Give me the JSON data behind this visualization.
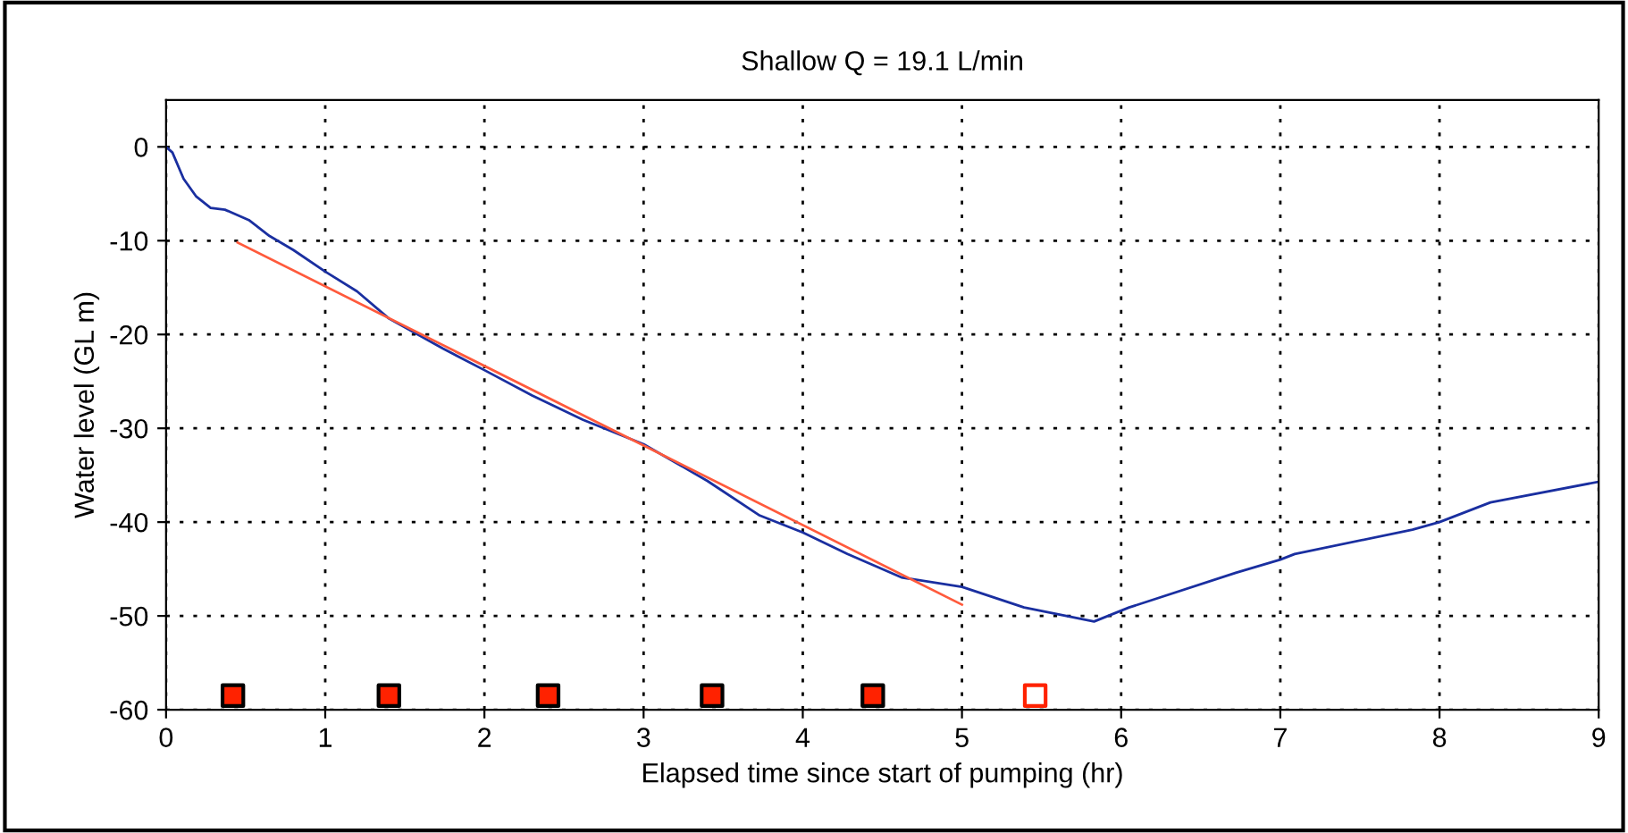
{
  "chart_data": {
    "type": "line",
    "title": "Shallow Q = 19.1 L/min",
    "xlabel": "Elapsed time since start of pumping (hr)",
    "ylabel": "Water level (GL m)",
    "xlim": [
      0,
      9
    ],
    "ylim": [
      -60,
      5
    ],
    "xticks": [
      0,
      1,
      2,
      3,
      4,
      5,
      6,
      7,
      8,
      9
    ],
    "yticks": [
      -60,
      -50,
      -40,
      -30,
      -20,
      -10,
      0
    ],
    "grid": true,
    "line_style": "solid",
    "marker": "none",
    "series": [
      {
        "color": "#1a2fa0",
        "x": [
          0,
          0.04,
          0.11,
          0.19,
          0.28,
          0.37,
          0.52,
          0.65,
          0.8,
          1.0,
          1.2,
          1.4,
          1.74,
          2.0,
          2.3,
          2.62,
          3.0,
          3.4,
          3.73,
          4.0,
          4.28,
          4.62,
          5.0,
          5.39,
          5.83,
          6.05,
          6.72,
          7.0,
          7.09,
          7.83,
          8.0,
          8.32,
          9.0
        ],
        "values": [
          0,
          -0.6,
          -3.4,
          -5.3,
          -6.5,
          -6.7,
          -7.8,
          -9.5,
          -11,
          -13.3,
          -15.4,
          -18.3,
          -21.5,
          -23.8,
          -26.5,
          -29.1,
          -31.7,
          -35.6,
          -39.3,
          -41.1,
          -43.4,
          -45.9,
          -46.9,
          -49.1,
          -50.6,
          -49.1,
          -45.4,
          -44.0,
          -43.4,
          -40.8,
          -40.0,
          -37.9,
          -35.7
        ]
      },
      {
        "color": "#ff5a3c",
        "x": [
          0.45,
          5.0
        ],
        "values": [
          -10.2,
          -48.8
        ]
      },
      {
        "type": "scatter",
        "marker": "square",
        "x": [
          0.42,
          1.4,
          2.4,
          3.43,
          4.44,
          5.46
        ],
        "values": [
          -58.5,
          -58.5,
          -58.5,
          -58.5,
          -58.5,
          -58.5
        ],
        "colors": [
          "#ff2200",
          "#ff2200",
          "#ff2200",
          "#ff2200",
          "#ff2200",
          "#ffffff"
        ]
      }
    ]
  }
}
